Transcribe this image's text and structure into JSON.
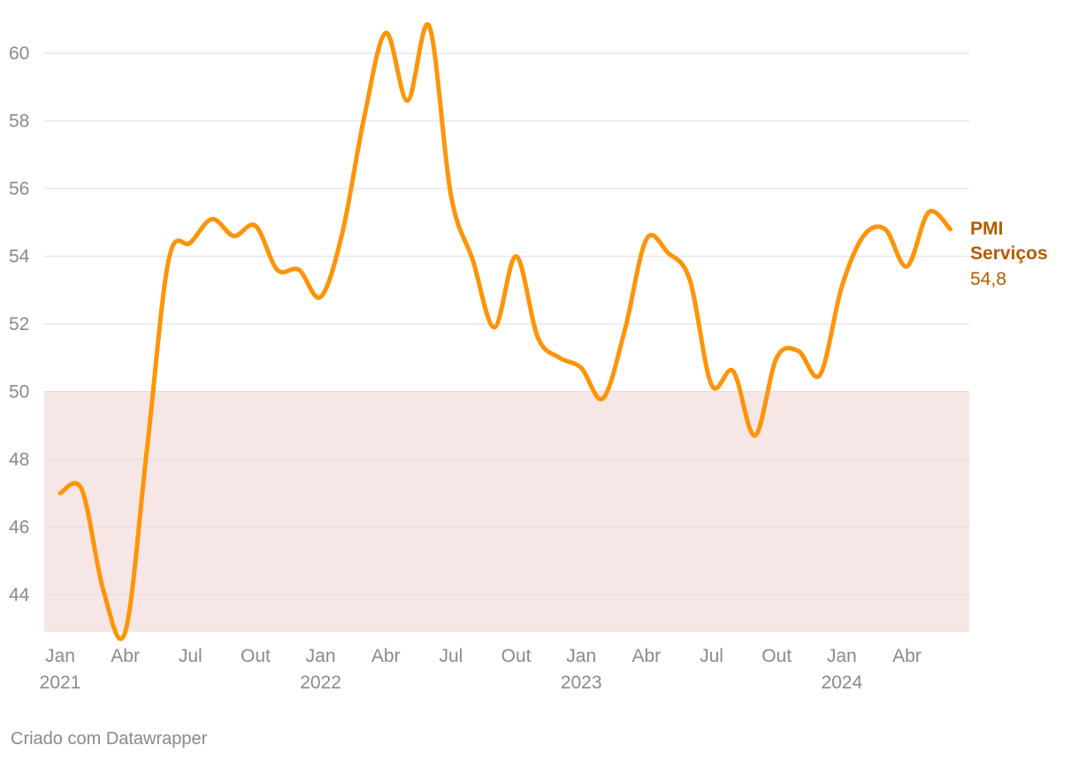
{
  "chart_data": {
    "type": "line",
    "title": "",
    "xlabel": "",
    "ylabel": "",
    "ylim": [
      42.9,
      61
    ],
    "y_ticks": [
      44,
      46,
      48,
      50,
      52,
      54,
      56,
      58,
      60
    ],
    "x_tick_labels": [
      {
        "month": "2021-01",
        "label": "Jan",
        "year": "2021"
      },
      {
        "month": "2021-04",
        "label": "Abr",
        "year": ""
      },
      {
        "month": "2021-07",
        "label": "Jul",
        "year": ""
      },
      {
        "month": "2021-10",
        "label": "Out",
        "year": ""
      },
      {
        "month": "2022-01",
        "label": "Jan",
        "year": "2022"
      },
      {
        "month": "2022-04",
        "label": "Abr",
        "year": ""
      },
      {
        "month": "2022-07",
        "label": "Jul",
        "year": ""
      },
      {
        "month": "2022-10",
        "label": "Out",
        "year": ""
      },
      {
        "month": "2023-01",
        "label": "Jan",
        "year": "2023"
      },
      {
        "month": "2023-04",
        "label": "Abr",
        "year": ""
      },
      {
        "month": "2023-07",
        "label": "Jul",
        "year": ""
      },
      {
        "month": "2023-10",
        "label": "Out",
        "year": ""
      },
      {
        "month": "2024-01",
        "label": "Jan",
        "year": "2024"
      },
      {
        "month": "2024-04",
        "label": "Abr",
        "year": ""
      }
    ],
    "contraction_band": {
      "from": 42.9,
      "to": 50,
      "color": "#f7e6e6"
    },
    "grid": true,
    "series": [
      {
        "name": "PMI Serviços",
        "last_value_label": "54,8",
        "color": "#ff9409",
        "label_color": "#b35c00",
        "x": [
          "2021-01",
          "2021-02",
          "2021-03",
          "2021-04",
          "2021-05",
          "2021-06",
          "2021-07",
          "2021-08",
          "2021-09",
          "2021-10",
          "2021-11",
          "2021-12",
          "2022-01",
          "2022-02",
          "2022-03",
          "2022-04",
          "2022-05",
          "2022-06",
          "2022-07",
          "2022-08",
          "2022-09",
          "2022-10",
          "2022-11",
          "2022-12",
          "2023-01",
          "2023-02",
          "2023-03",
          "2023-04",
          "2023-05",
          "2023-06",
          "2023-07",
          "2023-08",
          "2023-09",
          "2023-10",
          "2023-11",
          "2023-12",
          "2024-01",
          "2024-02",
          "2024-03",
          "2024-04",
          "2024-05",
          "2024-06"
        ],
        "values": [
          47.0,
          47.1,
          44.1,
          42.9,
          48.3,
          53.9,
          54.4,
          55.1,
          54.6,
          54.9,
          53.6,
          53.6,
          52.8,
          54.7,
          58.1,
          60.6,
          58.6,
          60.8,
          55.8,
          53.9,
          51.9,
          54.0,
          51.6,
          51.0,
          50.7,
          49.8,
          51.8,
          54.5,
          54.1,
          53.3,
          50.2,
          50.6,
          48.7,
          51.0,
          51.2,
          50.5,
          53.1,
          54.6,
          54.8,
          53.7,
          55.3,
          54.8
        ]
      }
    ]
  },
  "footer": {
    "credit": "Criado com Datawrapper"
  }
}
